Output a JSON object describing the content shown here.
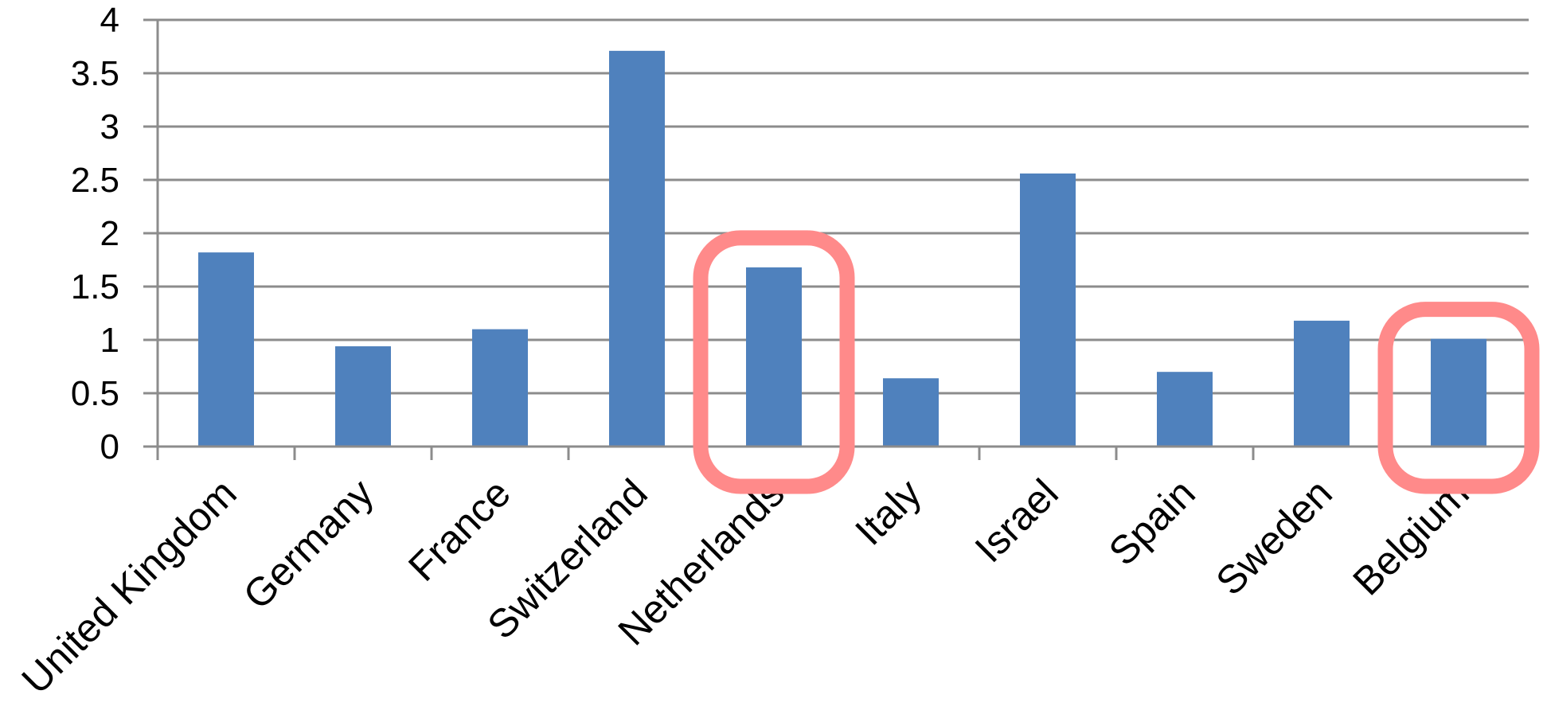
{
  "chart_data": {
    "type": "bar",
    "categories": [
      "United Kingdom",
      "Germany",
      "France",
      "Switzerland",
      "Netherlands",
      "Italy",
      "Israel",
      "Spain",
      "Sweden",
      "Belgium"
    ],
    "values": [
      1.82,
      0.94,
      1.1,
      3.71,
      1.68,
      0.64,
      2.56,
      0.7,
      1.18,
      1.01
    ],
    "yticks": [
      "0",
      "0.5",
      "1",
      "1.5",
      "2",
      "2.5",
      "3",
      "3.5",
      "4"
    ],
    "ylim": [
      0,
      4
    ],
    "grid": true,
    "highlighted_categories": [
      "Netherlands",
      "Belgium"
    ],
    "colors": {
      "bar": "#4f81bd",
      "highlight": "#ff8a8a",
      "grid": "#8c8c8c"
    }
  }
}
